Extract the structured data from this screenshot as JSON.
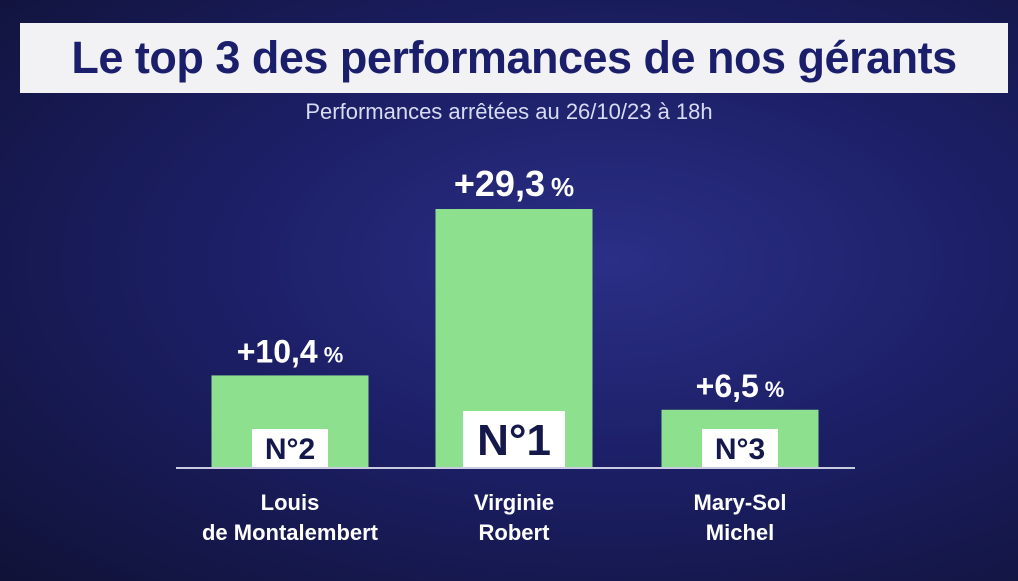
{
  "header": {
    "title": "Le top 3 des performances de nos gérants",
    "subtitle": "Performances arrêtées au 26/10/23 à 18h"
  },
  "colors": {
    "bar": "#8de08e",
    "badge": "#ffffff",
    "title_band": "#f2f2f4",
    "title_text": "#1b1f6b"
  },
  "chart_data": {
    "type": "bar",
    "categories": [
      "Louis de Montalembert",
      "Virginie Robert",
      "Mary-Sol Michel"
    ],
    "category_lines": [
      [
        "Louis",
        "de Montalembert"
      ],
      [
        "Virginie",
        "Robert"
      ],
      [
        "Mary-Sol",
        "Michel"
      ]
    ],
    "values": [
      10.4,
      29.3,
      6.5
    ],
    "value_labels": [
      {
        "number": "+10,4",
        "unit": "%"
      },
      {
        "number": "+29,3",
        "unit": "%"
      },
      {
        "number": "+6,5",
        "unit": "%"
      }
    ],
    "ranks": [
      "N°2",
      "N°1",
      "N°3"
    ],
    "title": "Le top 3 des performances de nos gérants",
    "subtitle": "Performances arrêtées au 26/10/23 à 18h",
    "xlabel": "",
    "ylabel": "",
    "unit": "%",
    "ylim": [
      0,
      29.3
    ],
    "grid": false,
    "legend": "none"
  }
}
